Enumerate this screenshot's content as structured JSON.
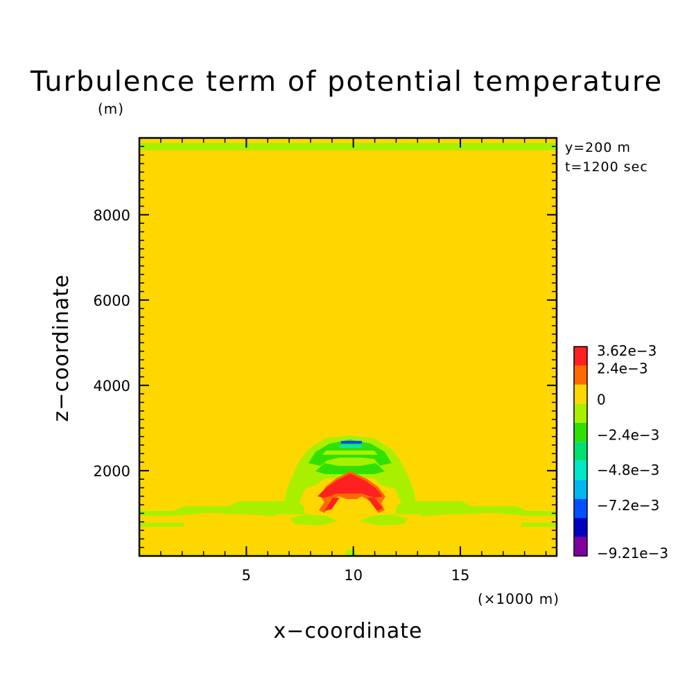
{
  "chart_data": {
    "type": "heatmap",
    "title": "Turbulence term of potential temperature",
    "xlabel": "x−coordinate",
    "ylabel": "z−coordinate",
    "x_unit": "(×1000 m)",
    "y_unit": "(m)",
    "xlim": [
      0,
      19.5
    ],
    "ylim": [
      0,
      9800
    ],
    "x_ticks": [
      "5",
      "10",
      "15"
    ],
    "x_tick_values": [
      5,
      10,
      15
    ],
    "y_ticks": [
      "2000",
      "4000",
      "6000",
      "8000"
    ],
    "y_tick_values": [
      2000,
      4000,
      6000,
      8000
    ],
    "annotations": [
      "y=200 m",
      "t=1200 sec"
    ],
    "background_value_label": "0",
    "colorbar": {
      "labels": [
        "3.62e−3",
        "2.4e−3",
        "0",
        "−2.4e−3",
        "−4.8e−3",
        "−7.2e−3",
        "−9.21e−3"
      ],
      "label_values": [
        0.00362,
        0.0024,
        0,
        -0.0024,
        -0.0048,
        -0.0072,
        -0.00921
      ],
      "colors": [
        "#ff2020",
        "#ff6a00",
        "#ffd700",
        "#a8f000",
        "#30e000",
        "#00e070",
        "#00e8c8",
        "#00b8f0",
        "#0050ff",
        "#0000c0",
        "#8000a0"
      ]
    },
    "regions": [
      {
        "name": "top-boundary-band",
        "level": "#a8f000",
        "x": [
          0,
          19.5
        ],
        "z": [
          9550,
          9720
        ]
      },
      {
        "name": "outer-arch",
        "level": "#a8f000",
        "x_center": 10,
        "z": [
          1000,
          2850
        ]
      },
      {
        "name": "inner-arch",
        "level": "#30e000",
        "x_center": 10,
        "z": [
          2200,
          2750
        ]
      },
      {
        "name": "minimum-core",
        "level": "#0050ff",
        "x": [
          9.4,
          10.6
        ],
        "z": [
          2700,
          2780
        ]
      },
      {
        "name": "positive-core",
        "level": "#ff2020",
        "x": [
          8.9,
          11.2
        ],
        "z": [
          1300,
          2050
        ]
      },
      {
        "name": "lower-band",
        "level": "#a8f000",
        "x": [
          0,
          19.5
        ],
        "z": [
          950,
          1150
        ]
      }
    ]
  }
}
